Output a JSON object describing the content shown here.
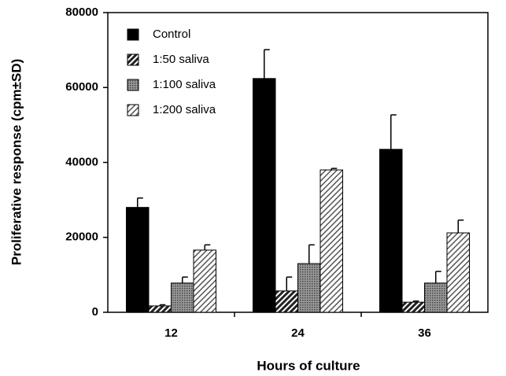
{
  "chart_data": {
    "type": "bar",
    "y_label": "Proliferative response (cpm±SD)",
    "x_label": "Hours of culture",
    "categories": [
      "12",
      "24",
      "36"
    ],
    "series": [
      {
        "name": "Control",
        "color": "#000000",
        "pattern": "solid",
        "values": [
          28000,
          62400,
          43500
        ],
        "errors": [
          2500,
          7700,
          9200
        ]
      },
      {
        "name": "1:50 saliva",
        "color": "#222222",
        "pattern": "hatch-dense",
        "values": [
          1700,
          5700,
          2700
        ],
        "errors": [
          300,
          3700,
          300
        ]
      },
      {
        "name": "1:100 saliva",
        "color": "#888888",
        "pattern": "dots",
        "values": [
          7800,
          13000,
          7800
        ],
        "errors": [
          1600,
          5000,
          3100
        ]
      },
      {
        "name": "1:200 saliva",
        "color": "#555555",
        "pattern": "hatch-light",
        "values": [
          16600,
          38000,
          21200
        ],
        "errors": [
          1400,
          400,
          3400
        ]
      }
    ],
    "ylim": [
      0,
      80000
    ],
    "yticks": [
      0,
      20000,
      40000,
      60000,
      80000
    ],
    "legend": "top-left"
  }
}
